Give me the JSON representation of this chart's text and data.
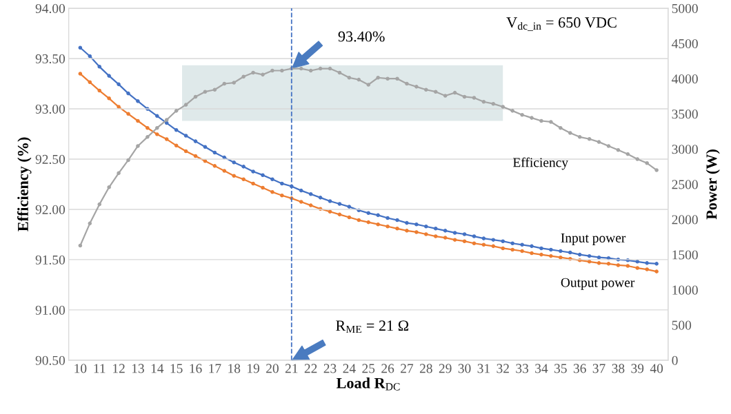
{
  "chart_data": {
    "type": "line",
    "xlabel": "Load R$_{DC}$",
    "ylabel": "Efficiency (%)",
    "y2label": "Power (W)",
    "x": [
      10,
      10.5,
      11,
      11.5,
      12,
      12.5,
      13,
      13.5,
      14,
      14.5,
      15,
      15.5,
      16,
      16.5,
      17,
      17.5,
      18,
      18.5,
      19,
      19.5,
      20,
      20.5,
      21,
      21.5,
      22,
      22.5,
      23,
      23.5,
      24,
      24.5,
      25,
      25.5,
      26,
      26.5,
      27,
      27.5,
      28,
      28.5,
      29,
      29.5,
      30,
      30.5,
      31,
      31.5,
      32,
      32.5,
      33,
      33.5,
      34,
      34.5,
      35,
      35.5,
      36,
      36.5,
      37,
      37.5,
      38,
      38.5,
      39,
      39.5,
      40
    ],
    "series": [
      {
        "name": "Efficiency",
        "color": "#a5a5a5",
        "values": [
          91.64,
          91.86,
          92.05,
          92.22,
          92.36,
          92.49,
          92.63,
          92.72,
          92.81,
          92.89,
          92.98,
          93.04,
          93.12,
          93.17,
          93.19,
          93.25,
          93.26,
          93.32,
          93.36,
          93.34,
          93.38,
          93.38,
          93.4,
          93.4,
          93.38,
          93.4,
          93.4,
          93.36,
          93.31,
          93.29,
          93.24,
          93.31,
          93.3,
          93.3,
          93.25,
          93.22,
          93.19,
          93.17,
          93.13,
          93.16,
          93.12,
          93.11,
          93.07,
          93.05,
          93.02,
          92.98,
          92.94,
          92.91,
          92.88,
          92.87,
          92.81,
          92.76,
          92.72,
          92.7,
          92.67,
          92.63,
          92.59,
          92.55,
          92.5,
          92.46,
          92.39
        ]
      },
      {
        "name": "Input power",
        "color": "#4472c4",
        "axis": "y2",
        "values": [
          4440,
          4320,
          4170,
          4040,
          3920,
          3790,
          3680,
          3570,
          3470,
          3370,
          3270,
          3190,
          3110,
          3030,
          2950,
          2880,
          2810,
          2750,
          2680,
          2630,
          2570,
          2510,
          2470,
          2410,
          2360,
          2310,
          2260,
          2220,
          2180,
          2130,
          2090,
          2060,
          2020,
          1990,
          1950,
          1930,
          1900,
          1870,
          1840,
          1810,
          1790,
          1760,
          1730,
          1710,
          1690,
          1660,
          1640,
          1620,
          1590,
          1570,
          1550,
          1530,
          1500,
          1480,
          1460,
          1450,
          1430,
          1420,
          1400,
          1380,
          1370
        ]
      },
      {
        "name": "Output power",
        "color": "#ed7d31",
        "axis": "y2",
        "values": [
          4070,
          3950,
          3830,
          3720,
          3600,
          3500,
          3400,
          3300,
          3210,
          3140,
          3050,
          2970,
          2900,
          2830,
          2760,
          2690,
          2620,
          2570,
          2510,
          2450,
          2390,
          2340,
          2300,
          2250,
          2200,
          2150,
          2110,
          2070,
          2030,
          1990,
          1960,
          1930,
          1900,
          1870,
          1840,
          1820,
          1790,
          1760,
          1740,
          1710,
          1690,
          1660,
          1640,
          1620,
          1590,
          1570,
          1550,
          1520,
          1500,
          1480,
          1460,
          1440,
          1420,
          1400,
          1380,
          1370,
          1350,
          1340,
          1310,
          1290,
          1260
        ]
      }
    ],
    "xlim": [
      9.4,
      40.6
    ],
    "xticks": [
      10,
      11,
      12,
      13,
      14,
      15,
      16,
      17,
      18,
      19,
      20,
      21,
      22,
      23,
      24,
      25,
      26,
      27,
      28,
      29,
      30,
      31,
      32,
      33,
      34,
      35,
      36,
      37,
      38,
      39,
      40
    ],
    "ylim": [
      90.5,
      94.0
    ],
    "yticks": [
      {
        "value": 90.5,
        "label": "90.50"
      },
      {
        "value": 91.0,
        "label": "91.00"
      },
      {
        "value": 91.5,
        "label": "91.50"
      },
      {
        "value": 92.0,
        "label": "92.00"
      },
      {
        "value": 92.5,
        "label": "92.50"
      },
      {
        "value": 93.0,
        "label": "93.00"
      },
      {
        "value": 93.5,
        "label": "93.50"
      },
      {
        "value": 94.0,
        "label": "94.00"
      }
    ],
    "y2lim": [
      0,
      5000
    ],
    "y2ticks": [
      0,
      500,
      1000,
      1500,
      2000,
      2500,
      3000,
      3500,
      4000,
      4500,
      5000
    ],
    "ref_lines": [
      {
        "axis": "x",
        "value": 21,
        "color": "#4472c4",
        "line_style": "dashed"
      }
    ],
    "bands": [
      {
        "axis": "x",
        "from": 15.3,
        "to": 32.0,
        "color": "#dfe9ea"
      }
    ],
    "annotations": [
      "93.40%",
      "R$_{ME}$ = 21 Ω",
      "V$_{dc_in}$ = 650 VDC"
    ],
    "grid": "y",
    "marker": "circle",
    "line_style": "solid",
    "legend": false
  }
}
